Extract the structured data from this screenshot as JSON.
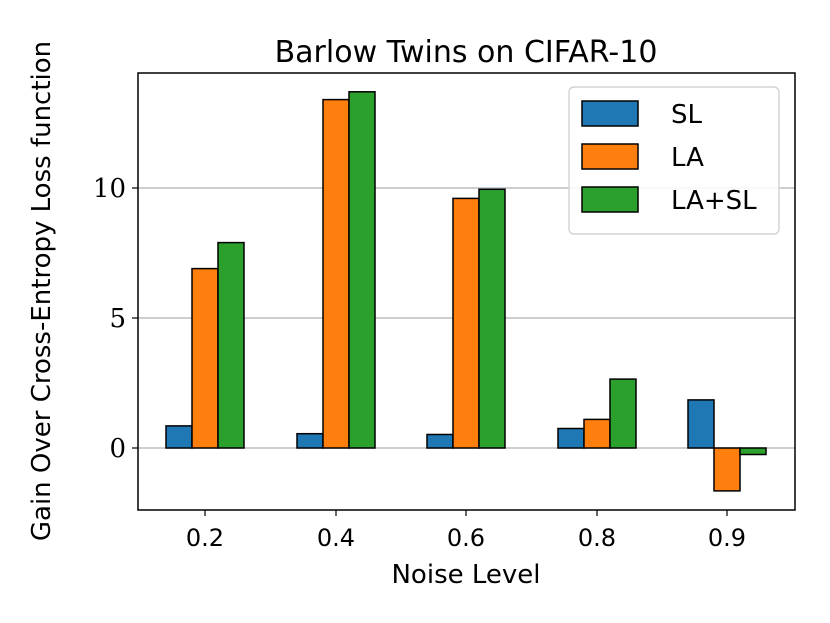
{
  "chart_data": {
    "type": "bar",
    "title": "Barlow Twins on CIFAR-10",
    "xlabel": "Noise Level",
    "ylabel": "Gain Over Cross-Entropy Loss function",
    "categories": [
      "0.2",
      "0.4",
      "0.6",
      "0.8",
      "0.9"
    ],
    "series": [
      {
        "name": "SL",
        "color": "#1f77b4",
        "values": [
          0.85,
          0.55,
          0.52,
          0.75,
          1.85
        ]
      },
      {
        "name": "LA",
        "color": "#ff7f0e",
        "values": [
          6.9,
          13.4,
          9.6,
          1.1,
          -1.65
        ]
      },
      {
        "name": "LA+SL",
        "color": "#2ca02c",
        "values": [
          7.9,
          13.7,
          9.95,
          2.65,
          -0.25
        ]
      }
    ],
    "ylim": [
      -2.4,
      14.3
    ],
    "yticks": [
      "0",
      "5",
      "10"
    ],
    "grid": "horizontal",
    "legend_position": "top-right"
  }
}
